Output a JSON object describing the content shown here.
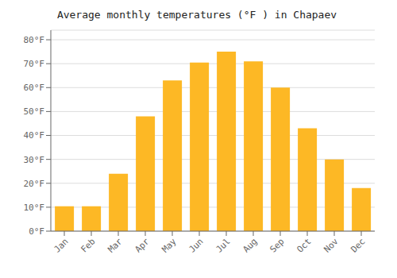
{
  "chart_data": {
    "type": "bar",
    "title": "Average monthly temperatures (°F ) in Chapaev",
    "categories": [
      "Jan",
      "Feb",
      "Mar",
      "Apr",
      "May",
      "Jun",
      "Jul",
      "Aug",
      "Sep",
      "Oct",
      "Nov",
      "Dec"
    ],
    "values": [
      10.4,
      10.4,
      24.0,
      48.0,
      63.0,
      70.5,
      75.0,
      71.0,
      60.0,
      43.0,
      30.0,
      18.0
    ],
    "color": "#FDB825",
    "ylim": [
      0,
      84
    ],
    "yticks": [
      {
        "value": 0,
        "label": "0°F"
      },
      {
        "value": 10,
        "label": "10°F"
      },
      {
        "value": 20,
        "label": "20°F"
      },
      {
        "value": 30,
        "label": "30°F"
      },
      {
        "value": 40,
        "label": "40°F"
      },
      {
        "value": 50,
        "label": "50°F"
      },
      {
        "value": 60,
        "label": "60°F"
      },
      {
        "value": 70,
        "label": "70°F"
      },
      {
        "value": 80,
        "label": "80°F"
      }
    ],
    "grid": true
  }
}
